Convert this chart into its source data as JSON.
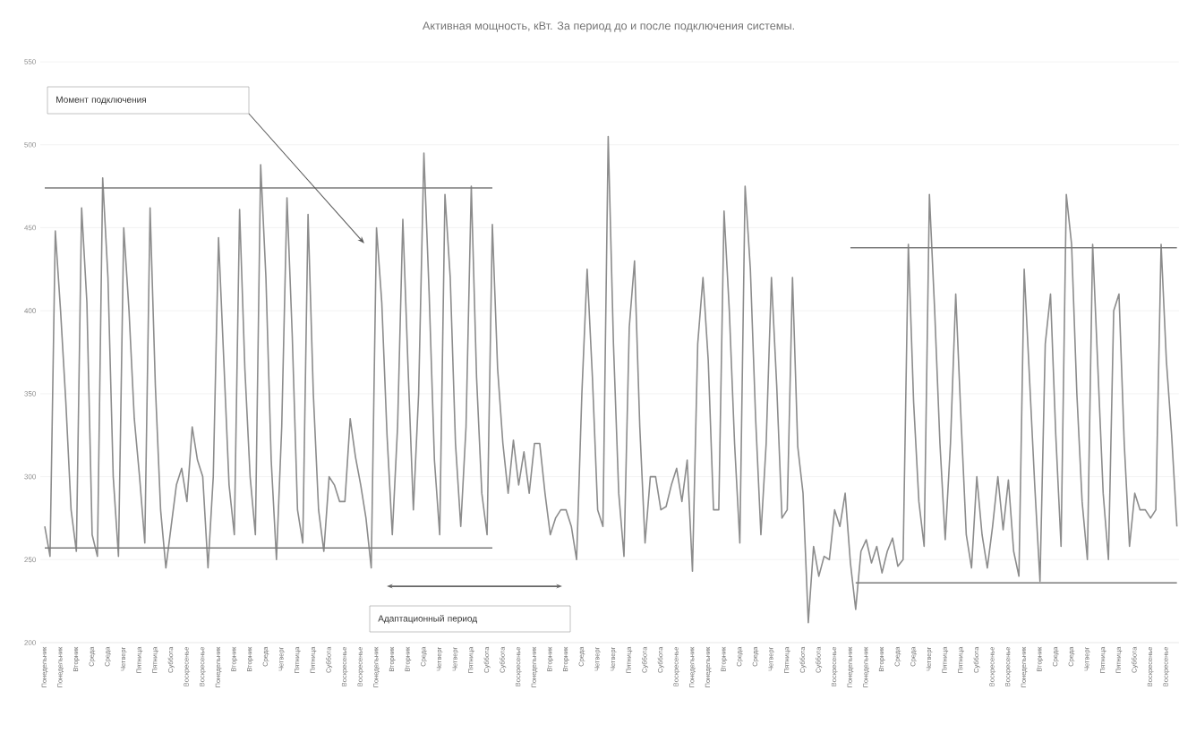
{
  "chart_data": {
    "type": "line",
    "title": "Активная мощность, кВт. За период до и после подключения системы.",
    "categories": [
      "Понедельник",
      null,
      null,
      "Понедельник",
      null,
      null,
      "Вторник",
      null,
      null,
      "Среда",
      null,
      null,
      "Среда",
      null,
      null,
      "Четверг",
      null,
      null,
      "Пятница",
      null,
      null,
      "Пятница",
      null,
      null,
      "Суббота",
      null,
      null,
      "Воскресенье",
      null,
      null,
      "Воскресенье",
      null,
      null,
      "Понедельник",
      null,
      null,
      "Вторник",
      null,
      null,
      "Вторник",
      null,
      null,
      "Среда",
      null,
      null,
      "Четверг",
      null,
      null,
      "Пятница",
      null,
      null,
      "Пятница",
      null,
      null,
      "Суббота",
      null,
      null,
      "Воскресенье",
      null,
      null,
      "Воскресенье",
      null,
      null,
      "Понедельник",
      null,
      null,
      "Вторник",
      null,
      null,
      "Вторник",
      null,
      null,
      "Среда",
      null,
      null,
      "Четверг",
      null,
      null,
      "Четверг",
      null,
      null,
      "Пятница",
      null,
      null,
      "Суббота",
      null,
      null,
      "Суббота",
      null,
      null,
      "Воскресенье",
      null,
      null,
      "Понедельник",
      null,
      null,
      "Вторник",
      null,
      null,
      "Вторник",
      null,
      null,
      "Среда",
      null,
      null,
      "Четверг",
      null,
      null,
      "Четверг",
      null,
      null,
      "Пятница",
      null,
      null,
      "Суббота",
      null,
      null,
      "Суббота",
      null,
      null,
      "Воскресенье",
      null,
      null,
      "Понедельник",
      null,
      null,
      "Понедельник",
      null,
      null,
      "Вторник",
      null,
      null,
      "Среда",
      null,
      null,
      "Среда",
      null,
      null,
      "Четверг",
      null,
      null,
      "Пятница",
      null,
      null,
      "Суббота",
      null,
      null,
      "Суббота",
      null,
      null,
      "Воскресенье",
      null,
      null,
      "Понедельник",
      null,
      null,
      "Понедельник",
      null,
      null,
      "Вторник",
      null,
      null,
      "Среда",
      null,
      null,
      "Среда",
      null,
      null,
      "Четверг",
      null,
      null,
      "Пятница",
      null,
      null,
      "Пятница",
      null,
      null,
      "Суббота",
      null,
      null,
      "Воскресенье",
      null,
      null,
      "Воскресенье",
      null,
      null,
      "Понедельник",
      null,
      null,
      "Вторник",
      null,
      null,
      "Среда",
      null,
      null,
      "Среда",
      null,
      null,
      "Четверг",
      null,
      null,
      "Пятница",
      null,
      null,
      "Пятница",
      null,
      null,
      "Суббота",
      null,
      null,
      "Воскресенье",
      null,
      null,
      "Воскресенье",
      null,
      null
    ],
    "series": [
      {
        "color": "#8c8c8c",
        "values": [
          270,
          252,
          448,
          400,
          345,
          280,
          255,
          462,
          405,
          265,
          252,
          480,
          420,
          300,
          252,
          450,
          400,
          335,
          300,
          260,
          462,
          355,
          280,
          245,
          270,
          295,
          305,
          285,
          330,
          310,
          300,
          245,
          300,
          444,
          370,
          295,
          265,
          461,
          365,
          300,
          265,
          488,
          420,
          310,
          250,
          330,
          468,
          385,
          280,
          260,
          458,
          350,
          280,
          255,
          300,
          295,
          285,
          285,
          335,
          312,
          295,
          275,
          245,
          450,
          405,
          325,
          265,
          330,
          455,
          365,
          280,
          350,
          495,
          410,
          310,
          265,
          470,
          420,
          320,
          270,
          330,
          475,
          360,
          290,
          265,
          452,
          365,
          320,
          290,
          322,
          295,
          315,
          290,
          320,
          320,
          290,
          265,
          275,
          280,
          280,
          270,
          250,
          350,
          425,
          360,
          280,
          270,
          505,
          380,
          290,
          252,
          390,
          430,
          330,
          260,
          300,
          300,
          280,
          282,
          295,
          305,
          285,
          310,
          243,
          380,
          420,
          370,
          280,
          280,
          460,
          400,
          320,
          260,
          475,
          425,
          335,
          265,
          320,
          420,
          355,
          275,
          280,
          420,
          318,
          290,
          212,
          258,
          240,
          252,
          250,
          280,
          270,
          290,
          248,
          220,
          255,
          262,
          248,
          258,
          242,
          255,
          263,
          246,
          250,
          440,
          345,
          285,
          258,
          470,
          400,
          320,
          262,
          320,
          410,
          335,
          265,
          245,
          300,
          265,
          245,
          270,
          300,
          268,
          298,
          255,
          240,
          425,
          360,
          295,
          237,
          380,
          410,
          325,
          258,
          470,
          440,
          350,
          285,
          250,
          440,
          365,
          290,
          250,
          400,
          410,
          320,
          258,
          290,
          280,
          280,
          275,
          280,
          440,
          370,
          325,
          270
        ]
      },
      {
        "type": "line",
        "color": "#7a7a7a",
        "values": [
          474,
          474,
          474,
          474,
          474,
          474,
          474,
          474,
          474,
          474,
          474,
          474,
          474,
          474,
          474,
          474,
          474,
          474,
          474,
          474,
          474,
          474,
          474,
          474,
          474,
          474,
          474,
          474,
          474,
          474,
          474,
          474,
          474,
          474,
          474,
          474,
          474,
          474,
          474,
          474,
          474,
          474,
          474,
          474,
          474,
          474,
          474,
          474,
          474,
          474,
          474,
          474,
          474,
          474,
          474,
          474,
          474,
          474,
          474,
          474,
          474,
          474,
          474,
          474,
          474,
          474,
          474,
          474,
          474,
          474,
          474,
          474,
          474,
          474,
          474,
          474,
          474,
          474,
          474,
          474,
          474,
          474,
          474,
          474,
          474,
          474,
          null,
          null,
          null,
          null,
          null,
          null,
          null,
          null,
          null,
          null,
          null,
          null,
          null,
          null,
          null,
          null,
          null,
          null,
          null,
          null,
          null,
          null,
          null,
          null,
          null,
          null,
          null,
          null,
          null,
          null,
          null,
          null,
          null,
          null,
          null,
          null,
          null,
          null,
          null,
          null,
          null,
          null,
          null,
          null,
          null,
          null,
          null,
          null,
          null,
          null,
          null,
          null,
          null,
          null,
          null,
          null,
          null,
          null,
          null,
          null,
          null,
          null,
          null,
          null,
          null,
          null,
          null,
          null,
          null,
          null,
          null,
          null,
          null,
          null,
          null,
          null,
          null,
          null,
          null,
          null,
          null,
          null,
          null,
          null,
          null,
          null,
          null,
          null,
          null,
          null,
          null,
          null,
          null,
          null,
          null,
          null,
          null,
          null,
          null,
          null,
          null,
          null,
          null,
          null,
          null,
          null,
          null,
          null,
          null,
          null,
          null,
          null,
          null,
          null,
          null,
          null,
          null,
          null,
          null,
          null,
          null,
          null,
          null,
          null,
          null,
          null,
          null,
          null,
          null,
          null
        ]
      },
      {
        "type": "line",
        "color": "#7a7a7a",
        "values": [
          257,
          257,
          257,
          257,
          257,
          257,
          257,
          257,
          257,
          257,
          257,
          257,
          257,
          257,
          257,
          257,
          257,
          257,
          257,
          257,
          257,
          257,
          257,
          257,
          257,
          257,
          257,
          257,
          257,
          257,
          257,
          257,
          257,
          257,
          257,
          257,
          257,
          257,
          257,
          257,
          257,
          257,
          257,
          257,
          257,
          257,
          257,
          257,
          257,
          257,
          257,
          257,
          257,
          257,
          257,
          257,
          257,
          257,
          257,
          257,
          257,
          257,
          257,
          257,
          257,
          257,
          257,
          257,
          257,
          257,
          257,
          257,
          257,
          257,
          257,
          257,
          257,
          257,
          257,
          257,
          257,
          257,
          257,
          257,
          257,
          257,
          null,
          null,
          null,
          null,
          null,
          null,
          null,
          null,
          null,
          null,
          null,
          null,
          null,
          null,
          null,
          null,
          null,
          null,
          null,
          null,
          null,
          null,
          null,
          null,
          null,
          null,
          null,
          null,
          null,
          null,
          null,
          null,
          null,
          null,
          null,
          null,
          null,
          null,
          null,
          null,
          null,
          null,
          null,
          null,
          null,
          null,
          null,
          null,
          null,
          null,
          null,
          null,
          null,
          null,
          null,
          null,
          null,
          null,
          null,
          null,
          null,
          null,
          null,
          null,
          null,
          null,
          null,
          null,
          null,
          null,
          null,
          null,
          null,
          null,
          null,
          null,
          null,
          null,
          null,
          null,
          null,
          null,
          null,
          null,
          null,
          null,
          null,
          null,
          null,
          null,
          null,
          null,
          null,
          null,
          null,
          null,
          null,
          null,
          null,
          null,
          null,
          null,
          null,
          null,
          null,
          null,
          null,
          null,
          null,
          null,
          null,
          null,
          null,
          null,
          null,
          null,
          null,
          null,
          null,
          null,
          null,
          null,
          null,
          null,
          null,
          null,
          null,
          null,
          null,
          null
        ]
      },
      {
        "type": "line",
        "color": "#7a7a7a",
        "values": [
          null,
          null,
          null,
          null,
          null,
          null,
          null,
          null,
          null,
          null,
          null,
          null,
          null,
          null,
          null,
          null,
          null,
          null,
          null,
          null,
          null,
          null,
          null,
          null,
          null,
          null,
          null,
          null,
          null,
          null,
          null,
          null,
          null,
          null,
          null,
          null,
          null,
          null,
          null,
          null,
          null,
          null,
          null,
          null,
          null,
          null,
          null,
          null,
          null,
          null,
          null,
          null,
          null,
          null,
          null,
          null,
          null,
          null,
          null,
          null,
          null,
          null,
          null,
          null,
          null,
          null,
          null,
          null,
          null,
          null,
          null,
          null,
          null,
          null,
          null,
          null,
          null,
          null,
          null,
          null,
          null,
          null,
          null,
          null,
          null,
          null,
          null,
          null,
          null,
          null,
          null,
          null,
          null,
          null,
          null,
          null,
          null,
          null,
          null,
          null,
          null,
          null,
          null,
          null,
          null,
          null,
          null,
          null,
          null,
          null,
          null,
          null,
          null,
          null,
          null,
          null,
          null,
          null,
          null,
          null,
          null,
          null,
          null,
          null,
          null,
          null,
          null,
          null,
          null,
          null,
          null,
          null,
          null,
          null,
          null,
          null,
          null,
          null,
          null,
          null,
          null,
          null,
          null,
          null,
          null,
          null,
          null,
          null,
          null,
          null,
          null,
          null,
          null,
          438,
          438,
          438,
          438,
          438,
          438,
          438,
          438,
          438,
          438,
          438,
          438,
          438,
          438,
          438,
          438,
          438,
          438,
          438,
          438,
          438,
          438,
          438,
          438,
          438,
          438,
          438,
          438,
          438,
          438,
          438,
          438,
          438,
          438,
          438,
          438,
          438,
          438,
          438,
          438,
          438,
          438,
          438,
          438,
          438,
          438,
          438,
          438,
          438,
          438,
          438,
          438,
          438,
          438,
          438,
          438,
          438,
          438,
          438,
          438,
          438,
          438,
          438
        ]
      },
      {
        "type": "line",
        "color": "#7a7a7a",
        "values": [
          null,
          null,
          null,
          null,
          null,
          null,
          null,
          null,
          null,
          null,
          null,
          null,
          null,
          null,
          null,
          null,
          null,
          null,
          null,
          null,
          null,
          null,
          null,
          null,
          null,
          null,
          null,
          null,
          null,
          null,
          null,
          null,
          null,
          null,
          null,
          null,
          null,
          null,
          null,
          null,
          null,
          null,
          null,
          null,
          null,
          null,
          null,
          null,
          null,
          null,
          null,
          null,
          null,
          null,
          null,
          null,
          null,
          null,
          null,
          null,
          null,
          null,
          null,
          null,
          null,
          null,
          null,
          null,
          null,
          null,
          null,
          null,
          null,
          null,
          null,
          null,
          null,
          null,
          null,
          null,
          null,
          null,
          null,
          null,
          null,
          null,
          null,
          null,
          null,
          null,
          null,
          null,
          null,
          null,
          null,
          null,
          null,
          null,
          null,
          null,
          null,
          null,
          null,
          null,
          null,
          null,
          null,
          null,
          null,
          null,
          null,
          null,
          null,
          null,
          null,
          null,
          null,
          null,
          null,
          null,
          null,
          null,
          null,
          null,
          null,
          null,
          null,
          null,
          null,
          null,
          null,
          null,
          null,
          null,
          null,
          null,
          null,
          null,
          null,
          null,
          null,
          null,
          null,
          null,
          null,
          null,
          null,
          null,
          null,
          null,
          null,
          null,
          null,
          null,
          236,
          236,
          236,
          236,
          236,
          236,
          236,
          236,
          236,
          236,
          236,
          236,
          236,
          236,
          236,
          236,
          236,
          236,
          236,
          236,
          236,
          236,
          236,
          236,
          236,
          236,
          236,
          236,
          236,
          236,
          236,
          236,
          236,
          236,
          236,
          236,
          236,
          236,
          236,
          236,
          236,
          236,
          236,
          236,
          236,
          236,
          236,
          236,
          236,
          236,
          236,
          236,
          236,
          236,
          236,
          236,
          236,
          236,
          236,
          236,
          236,
          236
        ]
      }
    ],
    "ylim": [
      200,
      550
    ],
    "yticks": [
      200,
      250,
      300,
      350,
      400,
      450,
      500,
      550
    ],
    "grid": "y",
    "marker": "none",
    "annotations": [
      "Момент подключения",
      "Адаптационный период"
    ]
  }
}
